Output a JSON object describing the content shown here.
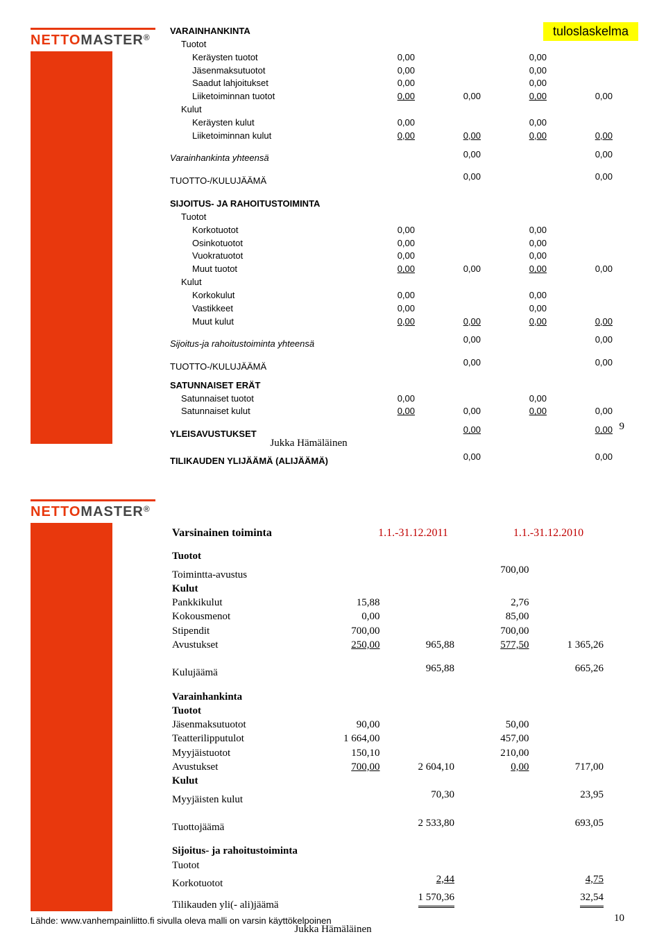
{
  "brand": {
    "part1": "NETTO",
    "part2": "MASTER",
    "reg": "®"
  },
  "badge": "tuloslaskelma",
  "author": "Jukka Hämäläinen",
  "slide1": {
    "pagenum": "9",
    "s1": {
      "title": "VARAINHANKINTA",
      "tuotot": "Tuotot",
      "r1": {
        "l": "Keräysten tuotot",
        "c1": "0,00",
        "c3": "0,00"
      },
      "r2": {
        "l": "Jäsenmaksutuotot",
        "c1": "0,00",
        "c3": "0,00"
      },
      "r3": {
        "l": "Saadut lahjoitukset",
        "c1": "0,00",
        "c3": "0,00"
      },
      "r4": {
        "l": "Liiketoiminnan tuotot",
        "c1": "0,00",
        "c2": "0,00",
        "c3": "0,00",
        "c4": "0,00"
      },
      "kulut": "Kulut",
      "r5": {
        "l": "Keräysten kulut",
        "c1": "0,00",
        "c3": "0,00"
      },
      "r6": {
        "l": "Liiketoiminnan kulut",
        "c1": "0,00",
        "c2": "0,00",
        "c3": "0,00",
        "c4": "0,00"
      },
      "sum": {
        "l": "Varainhankinta yhteensä",
        "c2": "0,00",
        "c4": "0,00"
      }
    },
    "tk1": {
      "l": "TUOTTO-/KULUJÄÄMÄ",
      "c2": "0,00",
      "c4": "0,00"
    },
    "s2": {
      "title": "SIJOITUS- JA RAHOITUSTOIMINTA",
      "tuotot": "Tuotot",
      "r1": {
        "l": "Korkotuotot",
        "c1": "0,00",
        "c3": "0,00"
      },
      "r2": {
        "l": "Osinkotuotot",
        "c1": "0,00",
        "c3": "0,00"
      },
      "r3": {
        "l": "Vuokratuotot",
        "c1": "0,00",
        "c3": "0,00"
      },
      "r4": {
        "l": "Muut tuotot",
        "c1": "0,00",
        "c2": "0,00",
        "c3": "0,00",
        "c4": "0,00"
      },
      "kulut": "Kulut",
      "r5": {
        "l": "Korkokulut",
        "c1": "0,00",
        "c3": "0,00"
      },
      "r6": {
        "l": "Vastikkeet",
        "c1": "0,00",
        "c3": "0,00"
      },
      "r7": {
        "l": "Muut kulut",
        "c1": "0,00",
        "c2": "0,00",
        "c3": "0,00",
        "c4": "0,00"
      },
      "sum": {
        "l": "Sijoitus-ja rahoitustoiminta yhteensä",
        "c2": "0,00",
        "c4": "0,00"
      }
    },
    "tk2": {
      "l": "TUOTTO-/KULUJÄÄMÄ",
      "c2": "0,00",
      "c4": "0,00"
    },
    "s3": {
      "title": "SATUNNAISET ERÄT",
      "r1": {
        "l": "Satunnaiset tuotot",
        "c1": "0,00",
        "c3": "0,00"
      },
      "r2": {
        "l": "Satunnaiset kulut",
        "c1": "0,00",
        "c2": "0,00",
        "c3": "0,00",
        "c4": "0,00"
      }
    },
    "yl": {
      "l": "YLEISAVUSTUKSET",
      "c2": "0,00",
      "c4": "0,00"
    },
    "tl": {
      "l": "TILIKAUDEN YLIJÄÄMÄ (ALIJÄÄMÄ)",
      "c2": "0,00",
      "c4": "0,00"
    }
  },
  "slide2": {
    "pagenum": "10",
    "source": "Lähde: www.vanhempainliitto.fi sivulla oleva malli on varsin käyttökelpoinen",
    "header": {
      "title": "Varsinainen toiminta",
      "c1": "1.1.-31.12.2011",
      "c2": "1.1.-31.12.2010"
    },
    "s1": {
      "tuotot": "Tuotot",
      "r1": {
        "l": "Toimintta-avustus",
        "c3": "700,00"
      },
      "kulut": "Kulut",
      "r2": {
        "l": "Pankkikulut",
        "c1": "15,88",
        "c3": "2,76"
      },
      "r3": {
        "l": "Kokousmenot",
        "c1": "0,00",
        "c3": "85,00"
      },
      "r4": {
        "l": "Stipendit",
        "c1": "700,00",
        "c3": "700,00"
      },
      "r5": {
        "l": "Avustukset",
        "c1": "250,00",
        "c2": "965,88",
        "c3": "577,50",
        "c4": "1 365,26"
      },
      "kj": {
        "l": "Kulujäämä",
        "c2": "965,88",
        "c4": "665,26"
      }
    },
    "s2": {
      "title": "Varainhankinta",
      "tuotot": "Tuotot",
      "r1": {
        "l": "Jäsenmaksutuotot",
        "c1": "90,00",
        "c3": "50,00"
      },
      "r2": {
        "l": "Teatterilipputulot",
        "c1": "1 664,00",
        "c3": "457,00"
      },
      "r3": {
        "l": "Myyjäistuotot",
        "c1": "150,10",
        "c3": "210,00"
      },
      "r4": {
        "l": "Avustukset",
        "c1": "700,00",
        "c2": "2 604,10",
        "c3": "0,00",
        "c4": "717,00"
      },
      "kulut": "Kulut",
      "r5": {
        "l": "Myyjäisten kulut",
        "c2": "70,30",
        "c4": "23,95"
      },
      "tj": {
        "l": "Tuottojäämä",
        "c2": "2 533,80",
        "c4": "693,05"
      }
    },
    "s3": {
      "title": "Sijoitus- ja rahoitustoiminta",
      "tuotot": "Tuotot",
      "r1": {
        "l": "Korkotuotot",
        "c2": "2,44",
        "c4": "4,75"
      },
      "r2": {
        "l": "Tilikauden yli(- ali)jäämä",
        "c2": "1 570,36",
        "c4": "32,54"
      }
    }
  }
}
